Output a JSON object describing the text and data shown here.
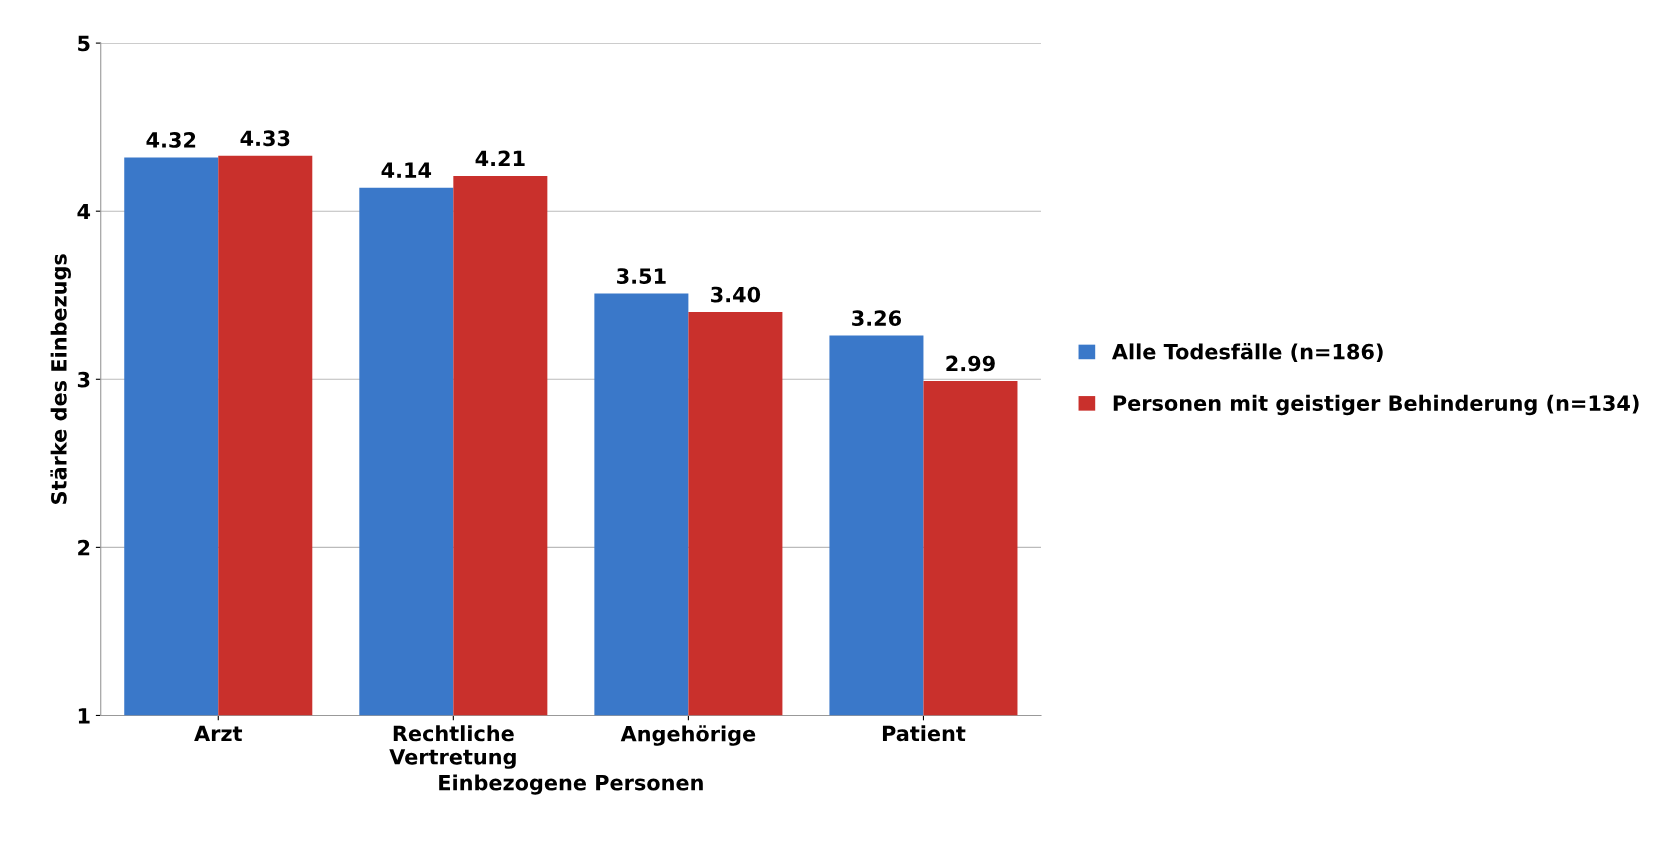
{
  "chart_data": {
    "type": "bar",
    "xlabel": "Einbezogene Personen",
    "ylabel": "Stärke des Einbezugs",
    "categories": [
      "Arzt",
      "Rechtliche\nVertretung",
      "Angehörige",
      "Patient"
    ],
    "series": [
      {
        "name": "Alle Todesfälle (n=186)",
        "color": "#3a78c9",
        "values": [
          4.32,
          4.14,
          3.51,
          3.26
        ],
        "value_labels": [
          "4.32",
          "4.14",
          "3.51",
          "3.26"
        ]
      },
      {
        "name": "Personen mit geistiger Behinderung (n=134)",
        "color": "#c9302c",
        "values": [
          4.33,
          4.21,
          3.4,
          2.99
        ],
        "value_labels": [
          "4.33",
          "4.21",
          "3.40",
          "2.99"
        ]
      }
    ],
    "ylim": [
      1,
      5
    ],
    "yticks": [
      1,
      2,
      3,
      4,
      5
    ],
    "grid": "y",
    "legend": "right"
  }
}
